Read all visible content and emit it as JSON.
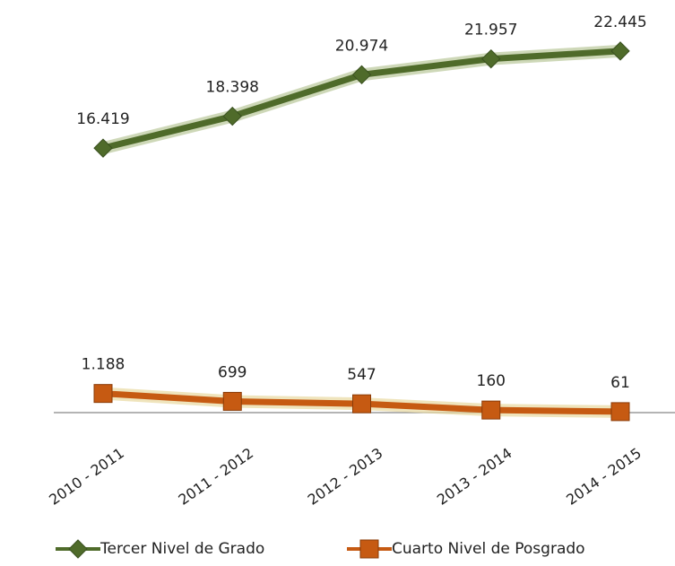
{
  "chart_data": {
    "type": "line",
    "categories": [
      "2010 - 2011",
      "2011 - 2012",
      "2012 - 2013",
      "2013 - 2014",
      "2014 - 2015"
    ],
    "series": [
      {
        "name": "Tercer Nivel de Grado",
        "color": "#4f6b2a",
        "marker": "diamond",
        "values": [
          16419,
          18398,
          20974,
          21957,
          22445
        ],
        "value_labels": [
          "16.419",
          "18.398",
          "20.974",
          "21.957",
          "22.445"
        ]
      },
      {
        "name": "Cuarto Nivel de Posgrado",
        "color": "#c65a12",
        "marker": "square",
        "values": [
          1188,
          699,
          547,
          160,
          61
        ],
        "value_labels": [
          "1.188",
          "699",
          "547",
          "160",
          "61"
        ]
      }
    ],
    "ylim": [
      0,
      25000
    ],
    "legend": "bottom"
  }
}
